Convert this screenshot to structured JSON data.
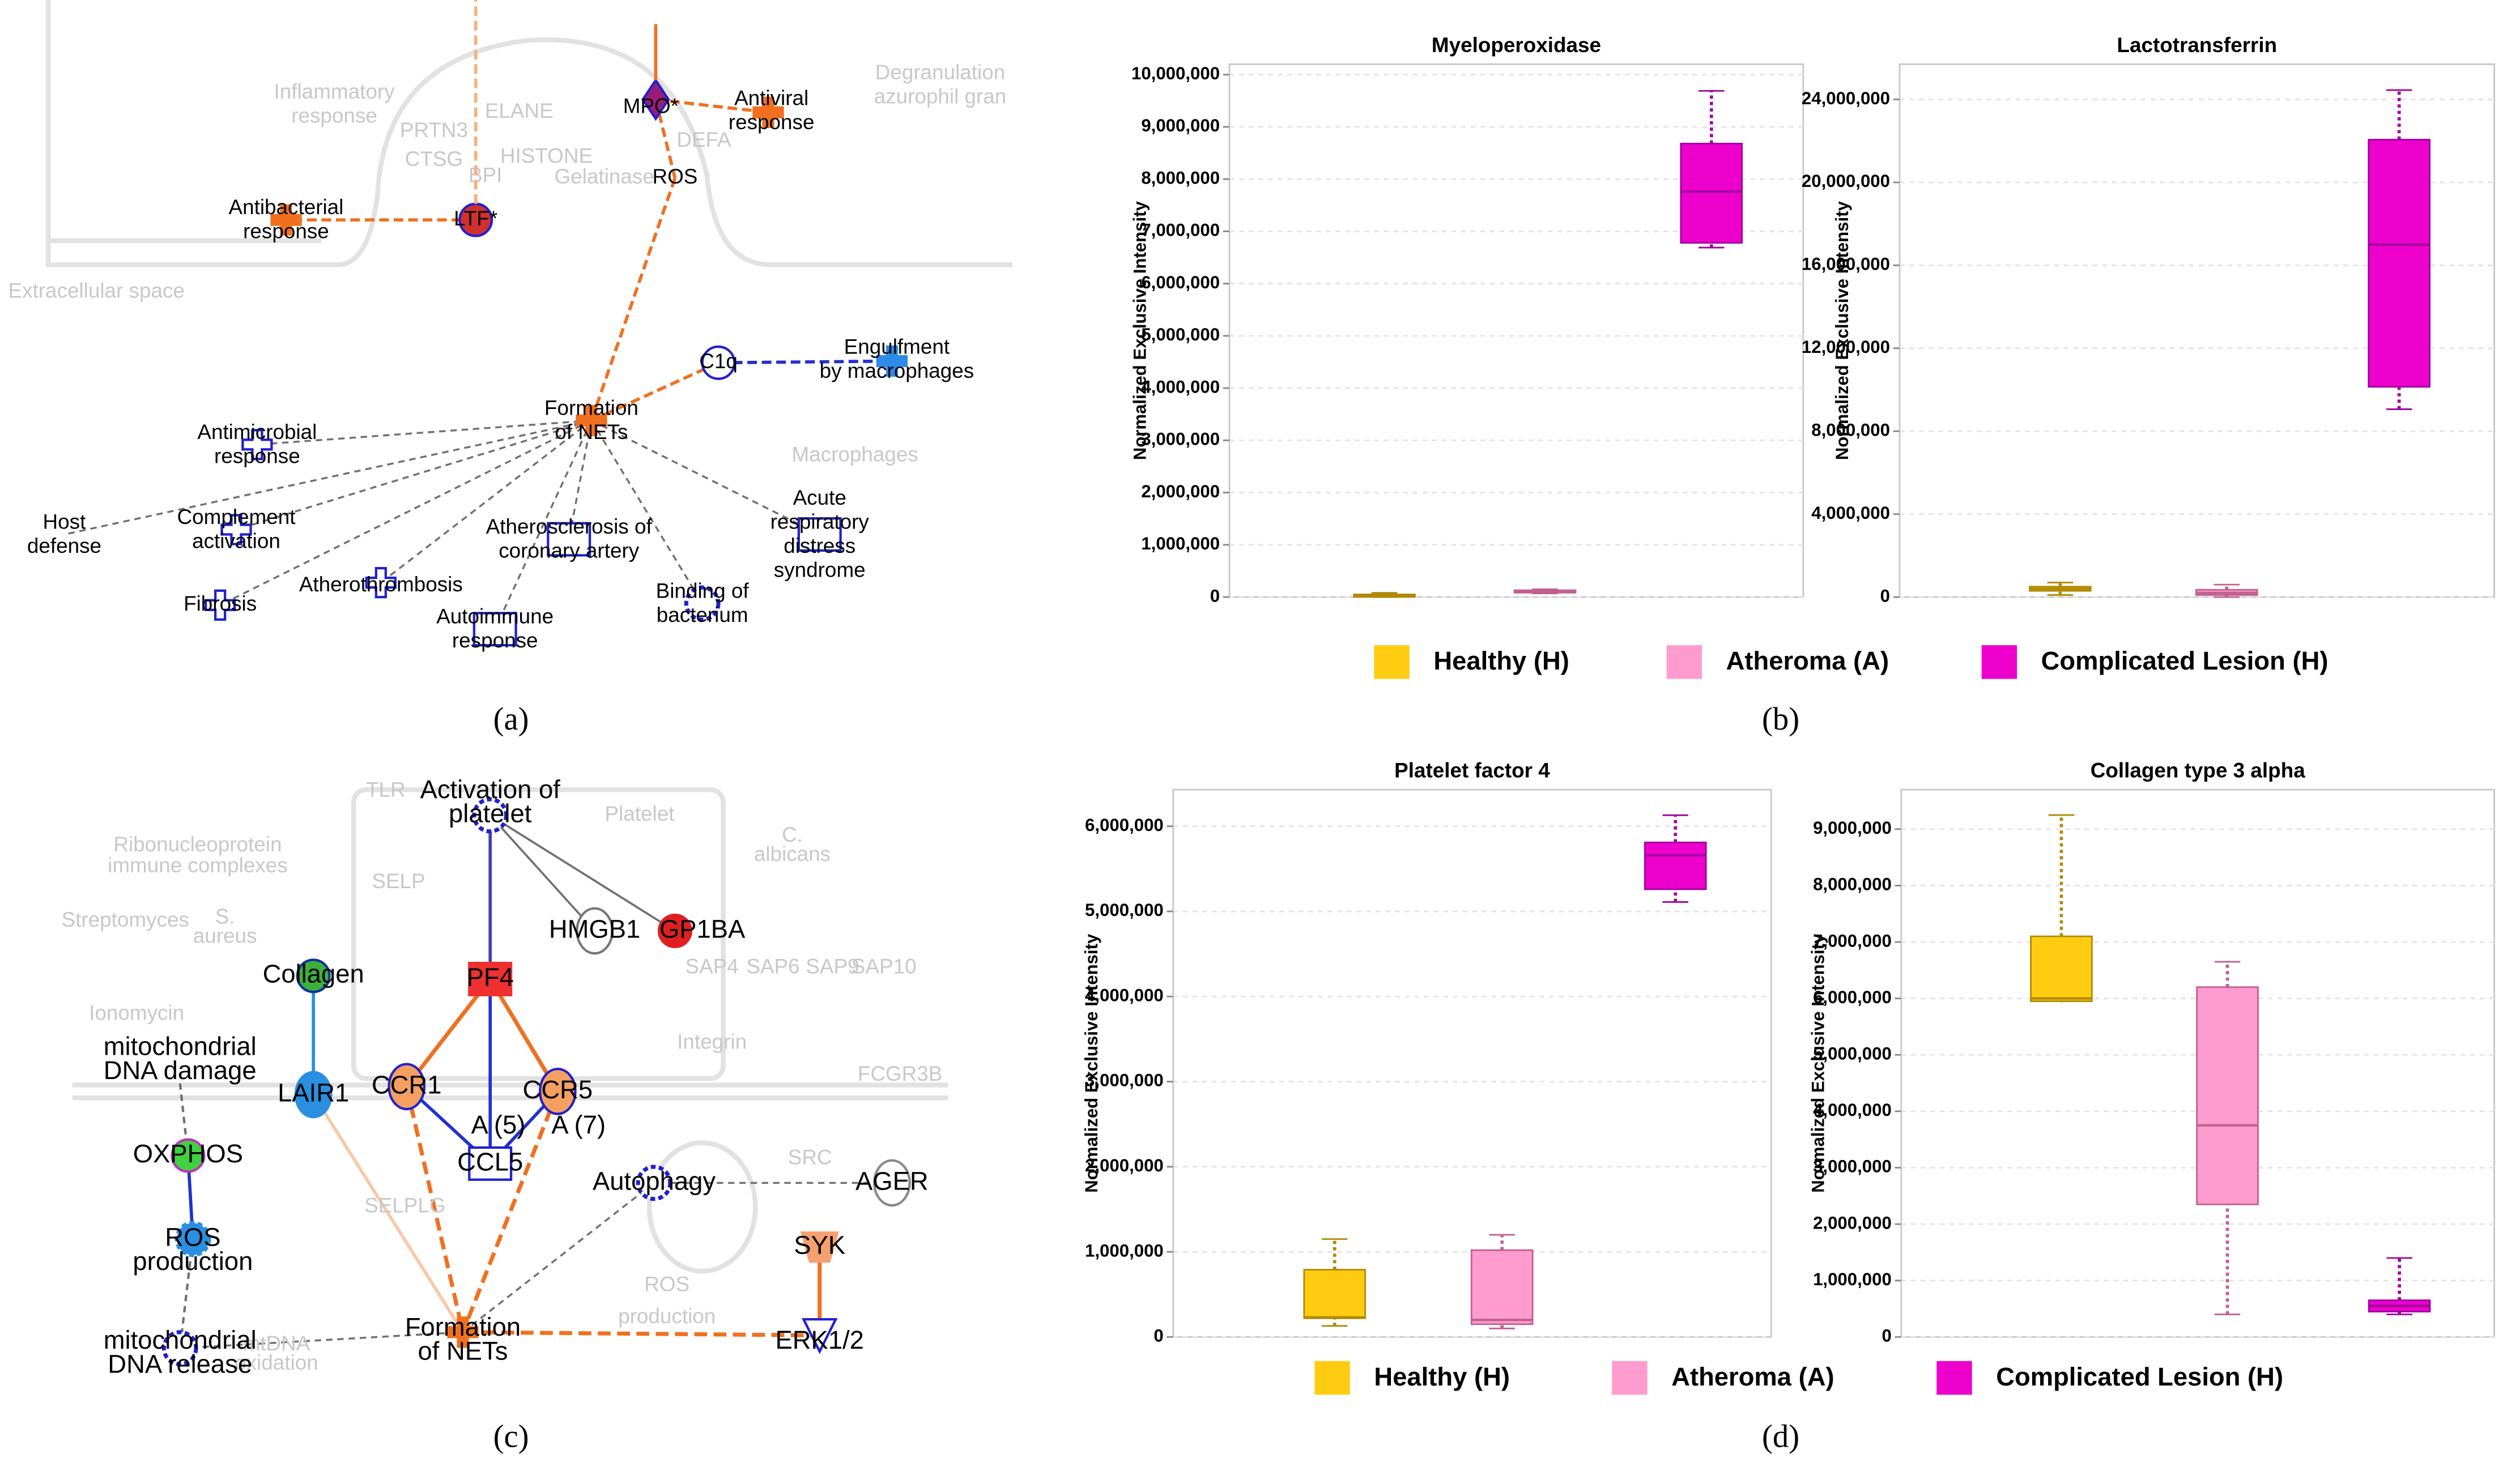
{
  "figure": {
    "panel_labels": [
      "(a)",
      "(b)",
      "(c)",
      "(d)"
    ]
  },
  "diagram_a": {
    "nodes": [
      {
        "label": [
          "MPO*"
        ]
      },
      {
        "label": [
          "Antiviral",
          "response"
        ]
      },
      {
        "label": [
          "ROS"
        ]
      },
      {
        "label": [
          "Antibacterial",
          "response"
        ]
      },
      {
        "label": [
          "LTF*"
        ]
      },
      {
        "label": [
          "C1q"
        ]
      },
      {
        "label": [
          "Engulfment",
          "by macrophages"
        ]
      },
      {
        "label": [
          "Formation",
          "of NETs"
        ]
      },
      {
        "label": [
          "Antimicrobial",
          "response"
        ]
      },
      {
        "label": [
          "Host",
          "defense"
        ]
      },
      {
        "label": [
          "Complement",
          "activation"
        ]
      },
      {
        "label": [
          "Atherosclerosis of",
          "coronary artery"
        ]
      },
      {
        "label": [
          "Acute",
          "respiratory",
          "distress",
          "syndrome"
        ]
      },
      {
        "label": [
          "Fibrosis"
        ]
      },
      {
        "label": [
          "Atherothrombosis"
        ]
      },
      {
        "label": [
          "Autoimmune",
          "response"
        ]
      },
      {
        "label": [
          "Binding of",
          "bacterium"
        ]
      }
    ],
    "background": [
      "Inflammatory",
      "response",
      "PRTN3",
      "ELANE",
      "CTSG",
      "HISTONE",
      "BPI",
      "DEFA",
      "Gelatinase",
      "Degranulation",
      "azurophil gran",
      "Extracellular space",
      "Macrophages"
    ]
  },
  "diagram_c": {
    "nodes": [
      {
        "label": [
          "Activation of",
          "platelet"
        ]
      },
      {
        "label": [
          "HMGB1"
        ]
      },
      {
        "label": [
          "GP1BA"
        ]
      },
      {
        "label": [
          "Collagen"
        ]
      },
      {
        "label": [
          "PF4"
        ]
      },
      {
        "label": [
          "mitochondrial",
          "DNA damage"
        ]
      },
      {
        "label": [
          "LAIR1"
        ]
      },
      {
        "label": [
          "CCR1"
        ]
      },
      {
        "label": [
          "CCR5"
        ]
      },
      {
        "label": [
          "A (5)"
        ]
      },
      {
        "label": [
          "A (7)"
        ]
      },
      {
        "label": [
          "CCL5"
        ]
      },
      {
        "label": [
          "Autophagy"
        ]
      },
      {
        "label": [
          "AGER"
        ]
      },
      {
        "label": [
          "OXPHOS"
        ]
      },
      {
        "label": [
          "ROS",
          "production"
        ]
      },
      {
        "label": [
          "SYK"
        ]
      },
      {
        "label": [
          "mitochondrial",
          "DNA release"
        ]
      },
      {
        "label": [
          "Formation",
          "of NETs"
        ]
      },
      {
        "label": [
          "ERK1/2"
        ]
      }
    ],
    "background": [
      "TLR",
      "Platelet",
      "Ribonucleoprotein",
      "immune complexes",
      "C.",
      "albicans",
      "SELP",
      "Streptomyces",
      "S.",
      "aureus",
      "SAP4",
      "SAP6",
      "SAP9",
      "SAP10",
      "Ionomycin",
      "Integrin",
      "SRC",
      "SELPLG",
      "ROS",
      "production",
      "mtDNA",
      "oxidation",
      "FCGR3B"
    ]
  },
  "legends": [
    {
      "entries": [
        {
          "name": "Healthy (H)",
          "color": "#ffcc11"
        },
        {
          "name": "Atheroma (A)",
          "color": "#ff9ccf"
        },
        {
          "name": "Complicated Lesion (H)",
          "color": "#ee00cc"
        }
      ]
    },
    {
      "entries": [
        {
          "name": "Healthy (H)",
          "color": "#ffcc11"
        },
        {
          "name": "Atheroma (A)",
          "color": "#ff9ccf"
        },
        {
          "name": "Complicated Lesion (H)",
          "color": "#ee00cc"
        }
      ]
    }
  ],
  "chart_data": [
    {
      "type": "box",
      "title": "Myeloperoxidase",
      "ylabel": "Normalized Exclusive Intensity",
      "ylim": [
        0,
        10200000
      ],
      "yticks": [
        0,
        {
          "value": 1000000,
          "label": "1,000,000"
        },
        {
          "value": 2000000,
          "label": "2,000,000"
        },
        {
          "value": 3000000,
          "label": "3,000,000"
        },
        {
          "value": 4000000,
          "label": "4,000,000"
        },
        {
          "value": 5000000,
          "label": "5,000,000"
        },
        {
          "value": 6000000,
          "label": "6,000,000"
        },
        {
          "value": 7000000,
          "label": "7,000,000"
        },
        {
          "value": 8000000,
          "label": "8,000,000"
        },
        {
          "value": 9000000,
          "label": "9,000,000"
        },
        {
          "value": 10000000,
          "label": "10,000,000"
        }
      ],
      "boxes": [
        {
          "low": 0,
          "q1": 10000,
          "median": 30000,
          "q3": 50000,
          "high": 80000
        },
        {
          "low": 70000,
          "q1": 90000,
          "median": 110000,
          "q3": 130000,
          "high": 150000
        },
        {
          "low": 6690000,
          "q1": 6780000,
          "median": 7760000,
          "q3": 8680000,
          "high": 9690000
        }
      ]
    },
    {
      "type": "box",
      "title": "Lactotransferrin",
      "ylabel": "Normalized Exclusive Intensity",
      "ylim": [
        0,
        25700000
      ],
      "yticks": [
        0,
        {
          "value": 4000000,
          "label": "4,000,000"
        },
        {
          "value": 8000000,
          "label": "8,000,000"
        },
        {
          "value": 12000000,
          "label": "12,000,000"
        },
        {
          "value": 16000000,
          "label": "16,000,000"
        },
        {
          "value": 20000000,
          "label": "20,000,000"
        },
        {
          "value": 24000000,
          "label": "24,000,000"
        }
      ],
      "boxes": [
        {
          "low": 100000,
          "q1": 300000,
          "median": 400000,
          "q3": 500000,
          "high": 700000
        },
        {
          "low": 0,
          "q1": 100000,
          "median": 200000,
          "q3": 350000,
          "high": 600000
        },
        {
          "low": 9060000,
          "q1": 10140000,
          "median": 17000000,
          "q3": 22060000,
          "high": 24450000
        }
      ]
    },
    {
      "type": "box",
      "title": "Platelet factor 4",
      "ylabel": "Normalized Exclusive Intensity",
      "ylim": [
        0,
        6430000
      ],
      "yticks": [
        0,
        {
          "value": 1000000,
          "label": "1,000,000"
        },
        {
          "value": 2000000,
          "label": "2,000,000"
        },
        {
          "value": 3000000,
          "label": "3,000,000"
        },
        {
          "value": 4000000,
          "label": "4,000,000"
        },
        {
          "value": 5000000,
          "label": "5,000,000"
        },
        {
          "value": 6000000,
          "label": "6,000,000"
        }
      ],
      "boxes": [
        {
          "low": 130000,
          "q1": 220000,
          "median": 230000,
          "q3": 790000,
          "high": 1150000
        },
        {
          "low": 100000,
          "q1": 150000,
          "median": 200000,
          "q3": 1020000,
          "high": 1200000
        },
        {
          "low": 5110000,
          "q1": 5260000,
          "median": 5660000,
          "q3": 5810000,
          "high": 6130000
        }
      ]
    },
    {
      "type": "box",
      "title": "Collagen type 3 alpha",
      "ylabel": "Normalized Exclusive Intensity",
      "ylim": [
        0,
        9700000
      ],
      "yticks": [
        0,
        {
          "value": 1000000,
          "label": "1,000,000"
        },
        {
          "value": 2000000,
          "label": "2,000,000"
        },
        {
          "value": 3000000,
          "label": "3,000,000"
        },
        {
          "value": 4000000,
          "label": "4,000,000"
        },
        {
          "value": 5000000,
          "label": "5,000,000"
        },
        {
          "value": 6000000,
          "label": "6,000,000"
        },
        {
          "value": 7000000,
          "label": "7,000,000"
        },
        {
          "value": 8000000,
          "label": "8,000,000"
        },
        {
          "value": 9000000,
          "label": "9,000,000"
        }
      ],
      "boxes": [
        {
          "low": 5950000,
          "q1": 5950000,
          "median": 6000000,
          "q3": 7100000,
          "high": 9250000
        },
        {
          "low": 400000,
          "q1": 2350000,
          "median": 3750000,
          "q3": 6200000,
          "high": 6650000
        },
        {
          "low": 400000,
          "q1": 450000,
          "median": 550000,
          "q3": 650000,
          "high": 1400000
        }
      ]
    }
  ]
}
